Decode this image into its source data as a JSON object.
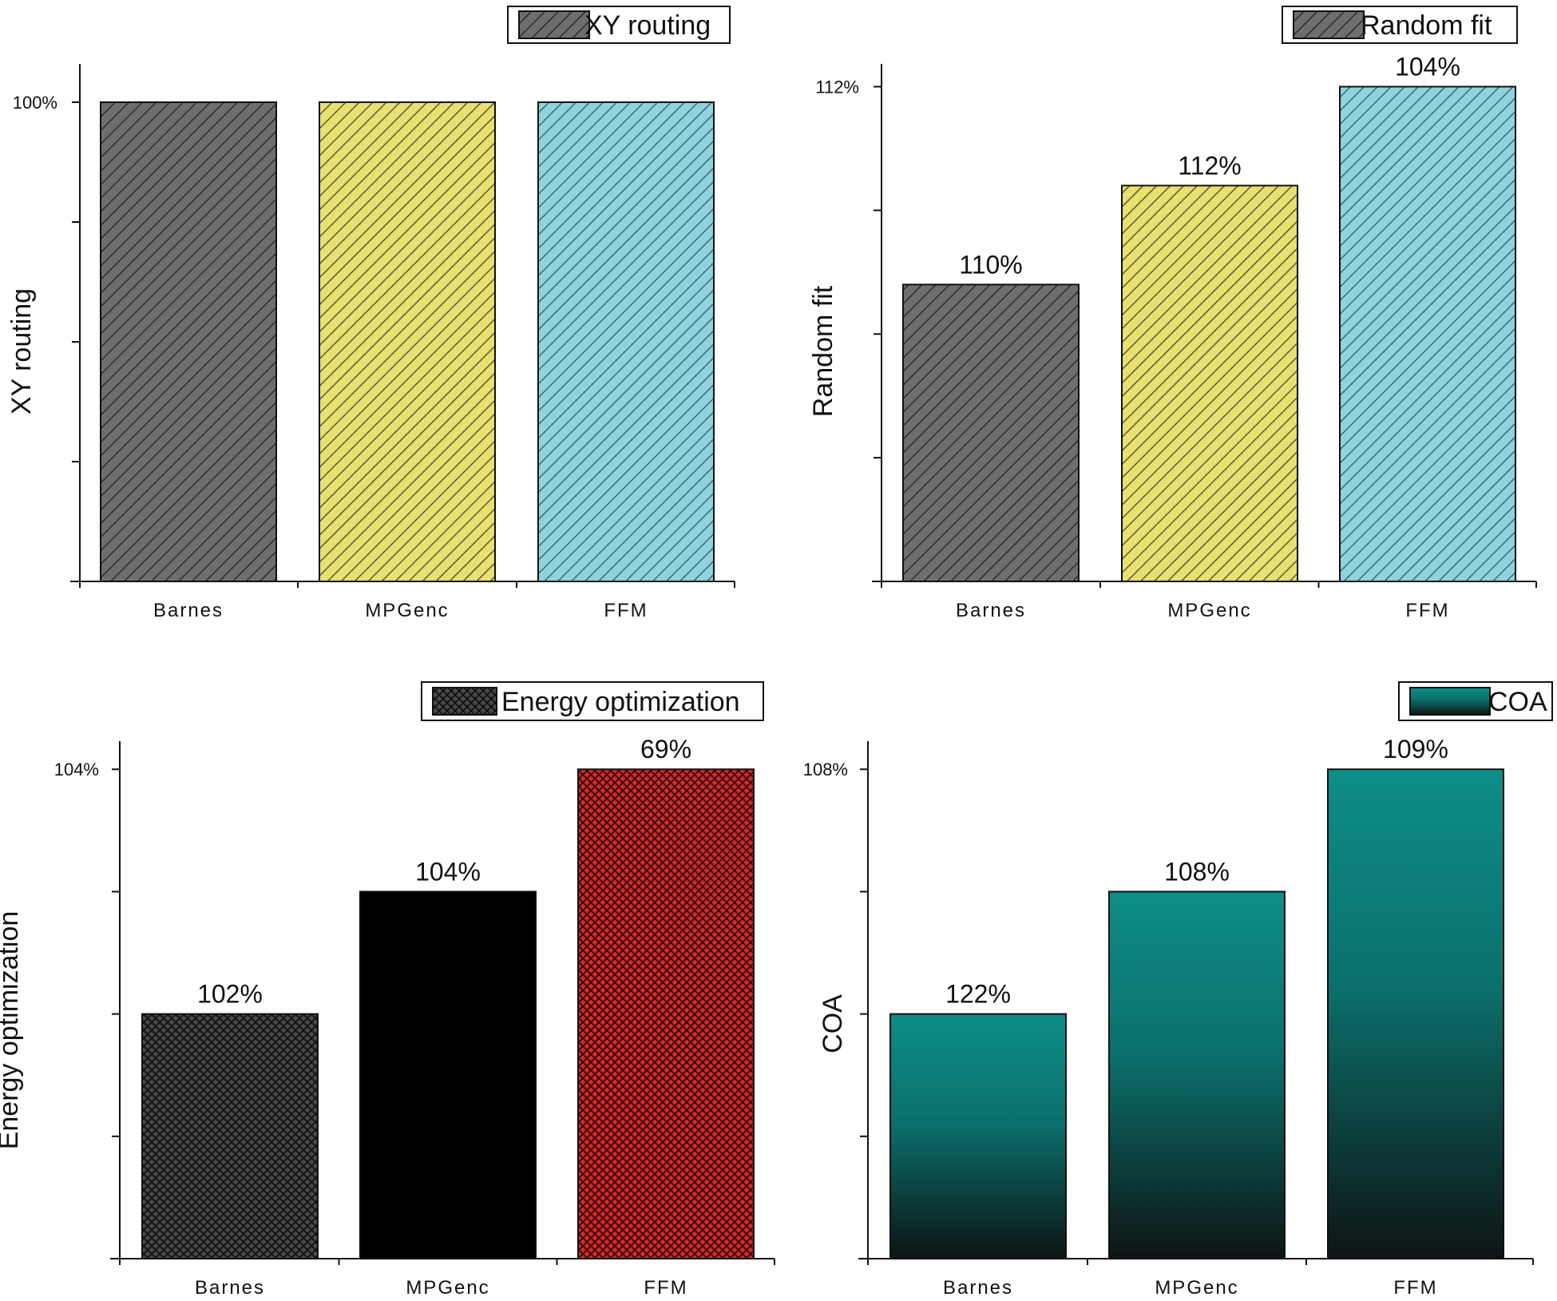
{
  "chart_data": [
    {
      "type": "bar",
      "categories": [
        "Barnes",
        "MPGenc",
        "FFM"
      ],
      "series": [
        {
          "name": "XY routing",
          "values": [
            100,
            100,
            100
          ]
        }
      ],
      "value_labels": [],
      "y_tick_labels": [
        "100%"
      ],
      "ylabel": "XY routing",
      "ylim": [
        0,
        108
      ],
      "bar_colors": [
        "#6e6e6e",
        "#e8e070",
        "#8fd3dc"
      ],
      "bar_fill": "diagonal-hatch",
      "grid": false,
      "legend_position": "top-center"
    },
    {
      "type": "bar",
      "categories": [
        "Barnes",
        "MPGenc",
        "FFM"
      ],
      "series": [
        {
          "name": "Random fit",
          "values": [
            3,
            4,
            5
          ]
        }
      ],
      "value_labels": [
        "110%",
        "112%",
        "104%"
      ],
      "y_tick_labels": [
        "112%"
      ],
      "ylabel": "Random fit",
      "ylim": [
        0,
        5.23
      ],
      "bar_colors": [
        "#6e6e6e",
        "#e8e070",
        "#8fd3dc"
      ],
      "bar_fill": "diagonal-hatch",
      "grid": false,
      "legend_position": "top-right"
    },
    {
      "type": "bar",
      "categories": [
        "Barnes",
        "MPGenc",
        "FFM"
      ],
      "series": [
        {
          "name": "Energy optimization",
          "values": [
            2,
            3,
            4
          ]
        }
      ],
      "value_labels": [
        "102%",
        "104%",
        "69%"
      ],
      "y_tick_labels": [
        "104%"
      ],
      "ylabel": "Energy optimization",
      "ylim": [
        0,
        4.23
      ],
      "bar_colors": [
        "#4a4a4a",
        "#000000",
        "#d42a2a"
      ],
      "bar_fill": "crosshatch",
      "grid": false,
      "legend_position": "top-right"
    },
    {
      "type": "bar",
      "categories": [
        "Barnes",
        "MPGenc",
        "FFM"
      ],
      "series": [
        {
          "name": "COA",
          "values": [
            2,
            3,
            4
          ]
        }
      ],
      "value_labels": [
        "122%",
        "108%",
        "109%"
      ],
      "y_tick_labels": [
        "108%"
      ],
      "ylabel": "COA",
      "ylim": [
        0,
        4.23
      ],
      "bar_colors": [
        "#0d8a85",
        "#0d8a85",
        "#0d8a85"
      ],
      "bar_fill": "vertical-gradient",
      "grid": false,
      "legend_position": "top-right"
    }
  ]
}
